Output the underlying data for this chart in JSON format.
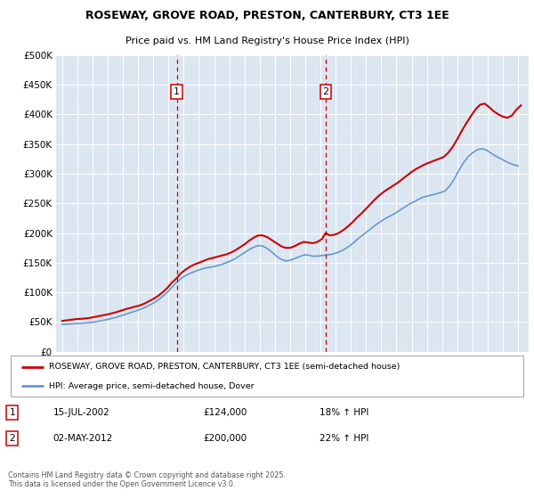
{
  "title": "ROSEWAY, GROVE ROAD, PRESTON, CANTERBURY, CT3 1EE",
  "subtitle": "Price paid vs. HM Land Registry's House Price Index (HPI)",
  "legend_line1": "ROSEWAY, GROVE ROAD, PRESTON, CANTERBURY, CT3 1EE (semi-detached house)",
  "legend_line2": "HPI: Average price, semi-detached house, Dover",
  "annotation1_label": "1",
  "annotation1_date": "15-JUL-2002",
  "annotation1_price": "£124,000",
  "annotation1_hpi": "18% ↑ HPI",
  "annotation1_year": 2002.54,
  "annotation2_label": "2",
  "annotation2_date": "02-MAY-2012",
  "annotation2_price": "£200,000",
  "annotation2_hpi": "22% ↑ HPI",
  "annotation2_year": 2012.34,
  "footer": "Contains HM Land Registry data © Crown copyright and database right 2025.\nThis data is licensed under the Open Government Licence v3.0.",
  "price_line_color": "#cc0000",
  "hpi_line_color": "#6699cc",
  "background_color": "#dce6f1",
  "ylim": [
    0,
    500000
  ],
  "xlim_start": 1994.6,
  "xlim_end": 2025.7,
  "yticks": [
    0,
    50000,
    100000,
    150000,
    200000,
    250000,
    300000,
    350000,
    400000,
    450000,
    500000
  ],
  "price_data": [
    [
      1995.0,
      52000
    ],
    [
      1995.3,
      53000
    ],
    [
      1995.6,
      54000
    ],
    [
      1995.9,
      55000
    ],
    [
      1996.2,
      55500
    ],
    [
      1996.5,
      56000
    ],
    [
      1996.8,
      57000
    ],
    [
      1997.1,
      58500
    ],
    [
      1997.4,
      60000
    ],
    [
      1997.7,
      61500
    ],
    [
      1998.0,
      63000
    ],
    [
      1998.3,
      65000
    ],
    [
      1998.6,
      67000
    ],
    [
      1998.9,
      69500
    ],
    [
      1999.2,
      72000
    ],
    [
      1999.5,
      74000
    ],
    [
      1999.8,
      76000
    ],
    [
      2000.1,
      78000
    ],
    [
      2000.4,
      81000
    ],
    [
      2000.7,
      85000
    ],
    [
      2001.0,
      89000
    ],
    [
      2001.3,
      94000
    ],
    [
      2001.6,
      100000
    ],
    [
      2001.9,
      107000
    ],
    [
      2002.2,
      116000
    ],
    [
      2002.54,
      124000
    ],
    [
      2002.8,
      132000
    ],
    [
      2003.1,
      138000
    ],
    [
      2003.4,
      143000
    ],
    [
      2003.7,
      147000
    ],
    [
      2004.0,
      150000
    ],
    [
      2004.3,
      153000
    ],
    [
      2004.6,
      156000
    ],
    [
      2004.9,
      158000
    ],
    [
      2005.2,
      160000
    ],
    [
      2005.5,
      162000
    ],
    [
      2005.8,
      164000
    ],
    [
      2006.1,
      167000
    ],
    [
      2006.4,
      171000
    ],
    [
      2006.7,
      176000
    ],
    [
      2007.0,
      181000
    ],
    [
      2007.3,
      187000
    ],
    [
      2007.6,
      192000
    ],
    [
      2007.9,
      196000
    ],
    [
      2008.2,
      196000
    ],
    [
      2008.5,
      193000
    ],
    [
      2008.8,
      188000
    ],
    [
      2009.1,
      183000
    ],
    [
      2009.4,
      178000
    ],
    [
      2009.7,
      175000
    ],
    [
      2010.0,
      175000
    ],
    [
      2010.3,
      178000
    ],
    [
      2010.6,
      182000
    ],
    [
      2010.9,
      185000
    ],
    [
      2011.2,
      184000
    ],
    [
      2011.5,
      183000
    ],
    [
      2011.8,
      185000
    ],
    [
      2012.1,
      190000
    ],
    [
      2012.34,
      200000
    ],
    [
      2012.6,
      196000
    ],
    [
      2012.9,
      197000
    ],
    [
      2013.2,
      200000
    ],
    [
      2013.5,
      205000
    ],
    [
      2013.8,
      211000
    ],
    [
      2014.1,
      218000
    ],
    [
      2014.4,
      226000
    ],
    [
      2014.7,
      233000
    ],
    [
      2015.0,
      241000
    ],
    [
      2015.3,
      249000
    ],
    [
      2015.6,
      257000
    ],
    [
      2015.9,
      264000
    ],
    [
      2016.2,
      270000
    ],
    [
      2016.5,
      275000
    ],
    [
      2016.8,
      280000
    ],
    [
      2017.1,
      285000
    ],
    [
      2017.4,
      291000
    ],
    [
      2017.7,
      297000
    ],
    [
      2018.0,
      303000
    ],
    [
      2018.3,
      308000
    ],
    [
      2018.6,
      312000
    ],
    [
      2018.9,
      316000
    ],
    [
      2019.2,
      319000
    ],
    [
      2019.5,
      322000
    ],
    [
      2019.8,
      325000
    ],
    [
      2020.1,
      328000
    ],
    [
      2020.4,
      335000
    ],
    [
      2020.7,
      345000
    ],
    [
      2021.0,
      358000
    ],
    [
      2021.3,
      372000
    ],
    [
      2021.6,
      385000
    ],
    [
      2021.9,
      397000
    ],
    [
      2022.2,
      408000
    ],
    [
      2022.5,
      416000
    ],
    [
      2022.8,
      418000
    ],
    [
      2023.1,
      412000
    ],
    [
      2023.4,
      405000
    ],
    [
      2023.7,
      400000
    ],
    [
      2024.0,
      396000
    ],
    [
      2024.3,
      394000
    ],
    [
      2024.6,
      398000
    ],
    [
      2024.9,
      408000
    ],
    [
      2025.2,
      415000
    ]
  ],
  "hpi_data": [
    [
      1995.0,
      46000
    ],
    [
      1995.3,
      46500
    ],
    [
      1995.6,
      47000
    ],
    [
      1995.9,
      47500
    ],
    [
      1996.2,
      48000
    ],
    [
      1996.5,
      48500
    ],
    [
      1996.8,
      49200
    ],
    [
      1997.1,
      50200
    ],
    [
      1997.4,
      51500
    ],
    [
      1997.7,
      53000
    ],
    [
      1998.0,
      54500
    ],
    [
      1998.3,
      56500
    ],
    [
      1998.6,
      58500
    ],
    [
      1998.9,
      61000
    ],
    [
      1999.2,
      63500
    ],
    [
      1999.5,
      66000
    ],
    [
      1999.8,
      68500
    ],
    [
      2000.1,
      71000
    ],
    [
      2000.4,
      74000
    ],
    [
      2000.7,
      78000
    ],
    [
      2001.0,
      82000
    ],
    [
      2001.3,
      87000
    ],
    [
      2001.6,
      93000
    ],
    [
      2001.9,
      100000
    ],
    [
      2002.2,
      108000
    ],
    [
      2002.5,
      116000
    ],
    [
      2002.8,
      123000
    ],
    [
      2003.1,
      128000
    ],
    [
      2003.4,
      132000
    ],
    [
      2003.7,
      135000
    ],
    [
      2004.0,
      138000
    ],
    [
      2004.3,
      140000
    ],
    [
      2004.6,
      142000
    ],
    [
      2004.9,
      143000
    ],
    [
      2005.2,
      145000
    ],
    [
      2005.5,
      147000
    ],
    [
      2005.8,
      150000
    ],
    [
      2006.1,
      153000
    ],
    [
      2006.4,
      157000
    ],
    [
      2006.7,
      162000
    ],
    [
      2007.0,
      167000
    ],
    [
      2007.3,
      172000
    ],
    [
      2007.6,
      176000
    ],
    [
      2007.9,
      179000
    ],
    [
      2008.2,
      178000
    ],
    [
      2008.5,
      174000
    ],
    [
      2008.8,
      168000
    ],
    [
      2009.1,
      161000
    ],
    [
      2009.4,
      156000
    ],
    [
      2009.7,
      153000
    ],
    [
      2010.0,
      154000
    ],
    [
      2010.3,
      157000
    ],
    [
      2010.6,
      160000
    ],
    [
      2010.9,
      163000
    ],
    [
      2011.2,
      163000
    ],
    [
      2011.5,
      161000
    ],
    [
      2011.8,
      161000
    ],
    [
      2012.1,
      162000
    ],
    [
      2012.4,
      163000
    ],
    [
      2012.7,
      164000
    ],
    [
      2013.0,
      166000
    ],
    [
      2013.3,
      169000
    ],
    [
      2013.6,
      173000
    ],
    [
      2013.9,
      178000
    ],
    [
      2014.2,
      184000
    ],
    [
      2014.5,
      191000
    ],
    [
      2014.8,
      197000
    ],
    [
      2015.1,
      203000
    ],
    [
      2015.4,
      209000
    ],
    [
      2015.7,
      215000
    ],
    [
      2016.0,
      220000
    ],
    [
      2016.3,
      225000
    ],
    [
      2016.6,
      229000
    ],
    [
      2016.9,
      233000
    ],
    [
      2017.2,
      238000
    ],
    [
      2017.5,
      243000
    ],
    [
      2017.8,
      248000
    ],
    [
      2018.1,
      252000
    ],
    [
      2018.4,
      256000
    ],
    [
      2018.7,
      260000
    ],
    [
      2019.0,
      262000
    ],
    [
      2019.3,
      264000
    ],
    [
      2019.6,
      266000
    ],
    [
      2019.9,
      268000
    ],
    [
      2020.2,
      271000
    ],
    [
      2020.5,
      279000
    ],
    [
      2020.8,
      291000
    ],
    [
      2021.1,
      305000
    ],
    [
      2021.4,
      318000
    ],
    [
      2021.7,
      328000
    ],
    [
      2022.0,
      335000
    ],
    [
      2022.3,
      340000
    ],
    [
      2022.6,
      342000
    ],
    [
      2022.9,
      340000
    ],
    [
      2023.2,
      335000
    ],
    [
      2023.5,
      330000
    ],
    [
      2023.8,
      326000
    ],
    [
      2024.1,
      322000
    ],
    [
      2024.4,
      318000
    ],
    [
      2024.7,
      315000
    ],
    [
      2025.0,
      313000
    ]
  ]
}
